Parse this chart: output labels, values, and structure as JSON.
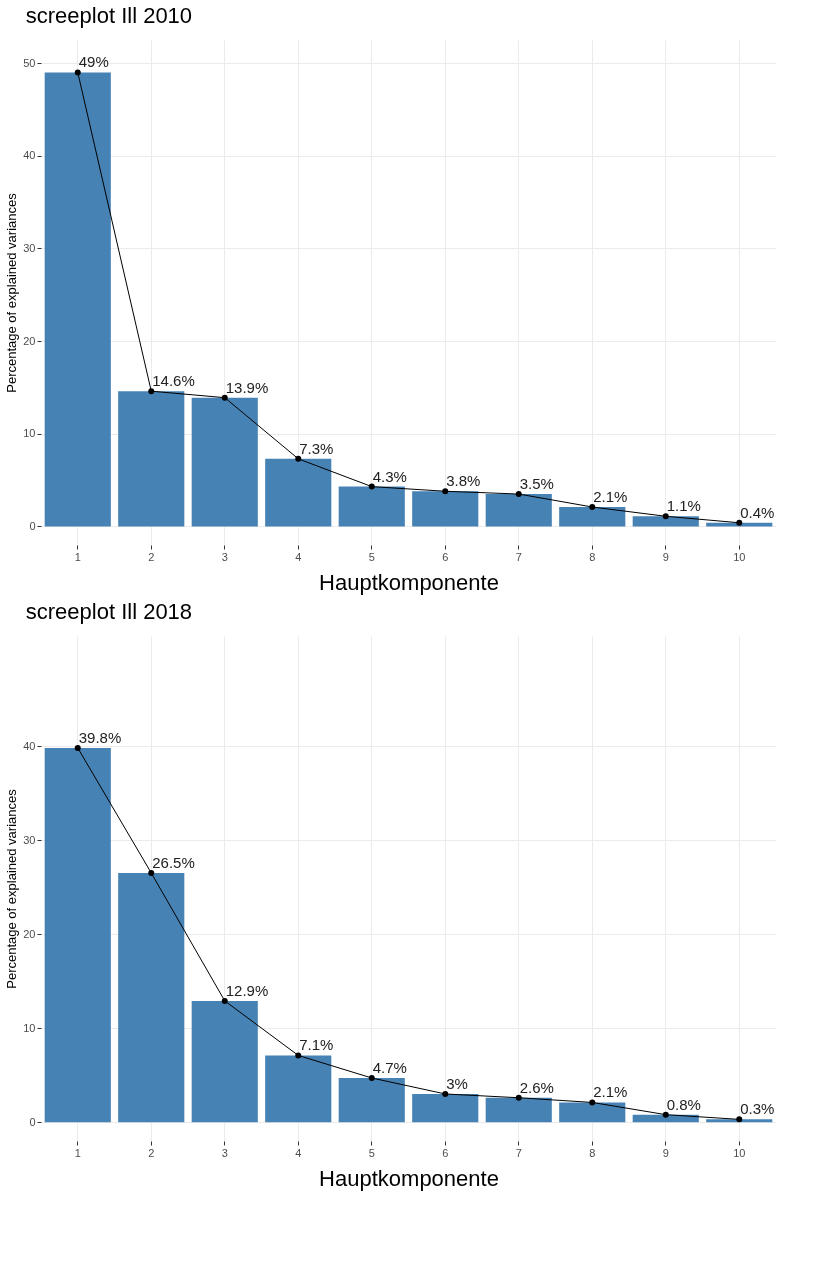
{
  "chart_data": [
    {
      "type": "bar",
      "title": "screeplot Ill 2010",
      "xlabel": "Hauptkomponente",
      "ylabel": "Percentage of explained variances",
      "categories": [
        "1",
        "2",
        "3",
        "4",
        "5",
        "6",
        "7",
        "8",
        "9",
        "10"
      ],
      "series": [
        {
          "color": "#4682b4",
          "values": [
            49,
            14.6,
            13.9,
            7.3,
            4.3,
            3.8,
            3.5,
            2.1,
            1.1,
            0.4
          ]
        },
        {
          "type": "line",
          "color": "#000000",
          "marker": "circle",
          "values": [
            49,
            14.6,
            13.9,
            7.3,
            4.3,
            3.8,
            3.5,
            2.1,
            1.1,
            0.4
          ],
          "value_labels": [
            "49%",
            "14.6%",
            "13.9%",
            "7.3%",
            "4.3%",
            "3.8%",
            "3.5%",
            "2.1%",
            "1.1%",
            "0.4%"
          ]
        }
      ],
      "ylim": [
        -2,
        52.5
      ],
      "yticks": [
        0,
        10,
        20,
        30,
        40,
        50
      ],
      "grid": true
    },
    {
      "type": "bar",
      "title": "screeplot Ill 2018",
      "xlabel": "Hauptkomponente",
      "ylabel": "Percentage of explained variances",
      "categories": [
        "1",
        "2",
        "3",
        "4",
        "5",
        "6",
        "7",
        "8",
        "9",
        "10"
      ],
      "series": [
        {
          "color": "#4682b4",
          "values": [
            39.8,
            26.5,
            12.9,
            7.1,
            4.7,
            3,
            2.6,
            2.1,
            0.8,
            0.3
          ]
        },
        {
          "type": "line",
          "color": "#000000",
          "marker": "circle",
          "values": [
            39.8,
            26.5,
            12.9,
            7.1,
            4.7,
            3,
            2.6,
            2.1,
            0.8,
            0.3
          ],
          "value_labels": [
            "39.8%",
            "26.5%",
            "12.9%",
            "7.1%",
            "4.7%",
            "3%",
            "2.6%",
            "2.1%",
            "0.8%",
            "0.3%"
          ]
        }
      ],
      "ylim": [
        -2,
        51.7
      ],
      "yticks": [
        0,
        10,
        20,
        30,
        40
      ],
      "grid": true
    }
  ]
}
